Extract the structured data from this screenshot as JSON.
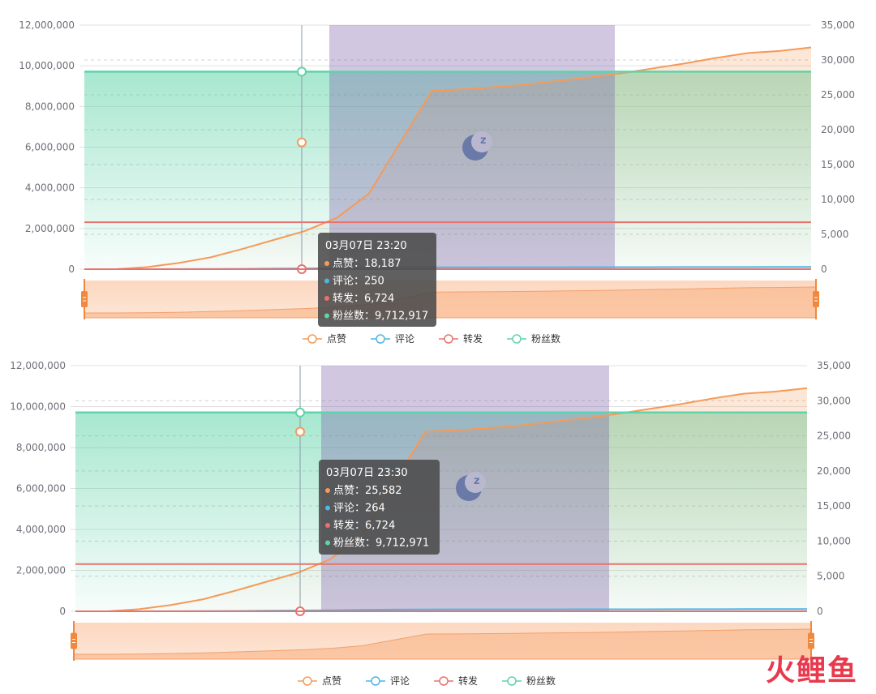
{
  "chart_data": [
    {
      "type": "line",
      "y_left": {
        "ylim": [
          0,
          12000000
        ],
        "ticks": [
          "0",
          "2,000,000",
          "4,000,000",
          "6,000,000",
          "8,000,000",
          "10,000,000",
          "12,000,000"
        ]
      },
      "y_right": {
        "ylim": [
          0,
          35000
        ],
        "ticks": [
          "0",
          "5,000",
          "10,000",
          "15,000",
          "20,000",
          "25,000",
          "30,000",
          "35,000"
        ]
      },
      "series": [
        {
          "name": "点赞",
          "axis": "right",
          "color": "#f59a58",
          "values": [
            0,
            0,
            300,
            900,
            1700,
            2900,
            4200,
            5500,
            7400,
            10800,
            18187,
            25582,
            25800,
            26100,
            26500,
            27000,
            27500,
            28100,
            28800,
            29500,
            30300,
            31000,
            31300,
            31800
          ]
        },
        {
          "name": "评论",
          "axis": "right",
          "color": "#4fb5e4",
          "values": [
            0,
            0,
            5,
            15,
            30,
            50,
            80,
            110,
            150,
            200,
            250,
            264,
            268,
            272,
            276,
            280,
            285,
            290,
            295,
            300,
            306,
            312,
            318,
            322
          ]
        },
        {
          "name": "转发",
          "axis": "right",
          "color": "#e8726d",
          "values": [
            6724,
            6724,
            6724,
            6724,
            6724,
            6724,
            6724,
            6724,
            6724,
            6724,
            6724,
            6724,
            6724,
            6724,
            6724,
            6724,
            6724,
            6724,
            6724,
            6724,
            6724,
            6724,
            6724,
            6724
          ]
        },
        {
          "name": "粉丝数",
          "axis": "left",
          "color": "#5fd3a9",
          "values": [
            9712917,
            9712917,
            9712917,
            9712917,
            9712917,
            9712917,
            9712917,
            9712917,
            9712917,
            9712917,
            9712917,
            9712971,
            9712971,
            9712971,
            9712971,
            9712971,
            9712971,
            9712971,
            9712971,
            9712971,
            9712971,
            9712971,
            9712971,
            9712971
          ]
        }
      ],
      "legend": [
        "点赞",
        "评论",
        "转发",
        "粉丝数"
      ],
      "legend_position": "bottom",
      "night_band_icon": "moon-zz-icon",
      "tooltip": {
        "title": "03月07日 23:20",
        "rows": [
          {
            "label": "点赞：",
            "value": "18,187",
            "color": "#f59a58"
          },
          {
            "label": "评论：",
            "value": "250",
            "color": "#4fb5e4"
          },
          {
            "label": "转发：",
            "value": "6,724",
            "color": "#e8726d"
          },
          {
            "label": "粉丝数：",
            "value": "9,712,917",
            "color": "#5fd3a9"
          }
        ]
      }
    },
    {
      "type": "line",
      "y_left": {
        "ylim": [
          0,
          12000000
        ],
        "ticks": [
          "0",
          "2,000,000",
          "4,000,000",
          "6,000,000",
          "8,000,000",
          "10,000,000",
          "12,000,000"
        ]
      },
      "y_right": {
        "ylim": [
          0,
          35000
        ],
        "ticks": [
          "0",
          "5,000",
          "10,000",
          "15,000",
          "20,000",
          "25,000",
          "30,000",
          "35,000"
        ]
      },
      "series": [
        {
          "name": "点赞",
          "axis": "right",
          "color": "#f59a58",
          "values": [
            0,
            0,
            300,
            900,
            1700,
            2900,
            4200,
            5500,
            7400,
            10800,
            18187,
            25582,
            25800,
            26100,
            26500,
            27000,
            27500,
            28100,
            28800,
            29500,
            30300,
            31000,
            31300,
            31800
          ]
        },
        {
          "name": "评论",
          "axis": "right",
          "color": "#4fb5e4",
          "values": [
            0,
            0,
            5,
            15,
            30,
            50,
            80,
            110,
            150,
            200,
            250,
            264,
            268,
            272,
            276,
            280,
            285,
            290,
            295,
            300,
            306,
            312,
            318,
            322
          ]
        },
        {
          "name": "转发",
          "axis": "right",
          "color": "#e8726d",
          "values": [
            6724,
            6724,
            6724,
            6724,
            6724,
            6724,
            6724,
            6724,
            6724,
            6724,
            6724,
            6724,
            6724,
            6724,
            6724,
            6724,
            6724,
            6724,
            6724,
            6724,
            6724,
            6724,
            6724,
            6724
          ]
        },
        {
          "name": "粉丝数",
          "axis": "left",
          "color": "#5fd3a9",
          "values": [
            9712917,
            9712917,
            9712917,
            9712917,
            9712917,
            9712917,
            9712917,
            9712917,
            9712917,
            9712917,
            9712917,
            9712971,
            9712971,
            9712971,
            9712971,
            9712971,
            9712971,
            9712971,
            9712971,
            9712971,
            9712971,
            9712971,
            9712971,
            9712971
          ]
        }
      ],
      "legend": [
        "点赞",
        "评论",
        "转发",
        "粉丝数"
      ],
      "legend_position": "bottom",
      "night_band_icon": "moon-zz-icon",
      "tooltip": {
        "title": "03月07日 23:30",
        "rows": [
          {
            "label": "点赞：",
            "value": "25,582",
            "color": "#f59a58"
          },
          {
            "label": "评论：",
            "value": "264",
            "color": "#4fb5e4"
          },
          {
            "label": "转发：",
            "value": "6,724",
            "color": "#e8726d"
          },
          {
            "label": "粉丝数：",
            "value": "9,712,971",
            "color": "#5fd3a9"
          }
        ]
      }
    }
  ],
  "watermark": "火鲤鱼"
}
